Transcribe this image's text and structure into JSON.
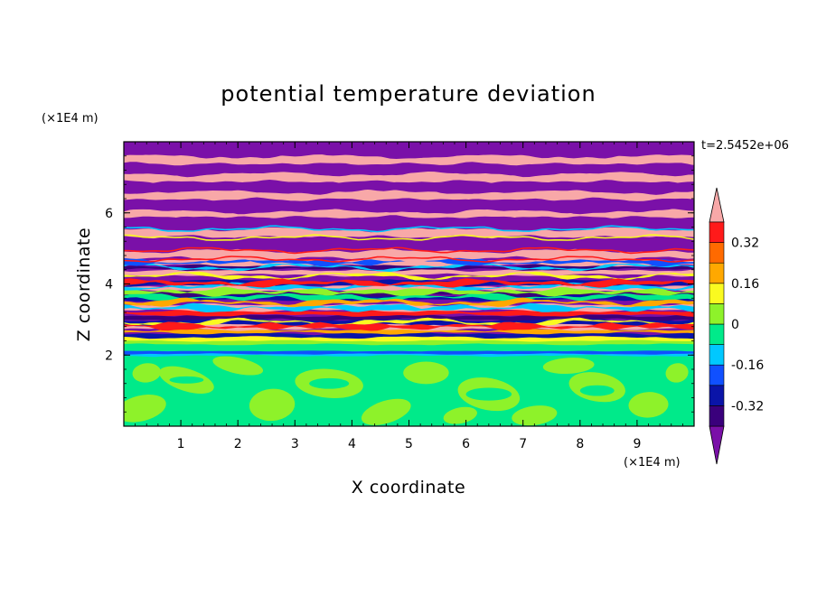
{
  "chart_data": {
    "type": "heatmap",
    "title": "potential temperature deviation",
    "xlabel": "X coordinate",
    "ylabel": "Z coordinate",
    "x_unit": "(×1E4 m)",
    "y_unit": "(×1E4 m)",
    "time_label": "t=2.5452e+06",
    "xlim": [
      0,
      10
    ],
    "ylim": [
      0,
      8
    ],
    "x_ticks": [
      "1",
      "2",
      "3",
      "4",
      "5",
      "6",
      "7",
      "8",
      "9"
    ],
    "y_ticks": [
      "2",
      "4",
      "6"
    ],
    "colorbar": {
      "levels": [
        -0.48,
        -0.4,
        -0.32,
        -0.24,
        -0.16,
        -0.08,
        0,
        0.08,
        0.16,
        0.24,
        0.32,
        0.4,
        0.48
      ],
      "labels": [
        "0.32",
        "0.16",
        "0",
        "-0.16",
        "-0.32"
      ],
      "label_values": [
        0.32,
        0.16,
        0,
        -0.16,
        -0.32
      ],
      "colors": [
        "#7a10a8",
        "#3a007c",
        "#0a14a8",
        "#1050ff",
        "#00c8ff",
        "#00ea8a",
        "#8ef22a",
        "#fafa20",
        "#ffa800",
        "#ff6a00",
        "#ff1a1a",
        "#f8a8a8"
      ],
      "extend": "both"
    },
    "field_summary": [
      {
        "z_range": [
          0,
          2.0
        ],
        "description": "mix of 0 to 0.08 (green / yellow-green)"
      },
      {
        "z_range": [
          2.0,
          2.4
        ],
        "description": "0 to -0.08 band with -0.16 layer near 2.1"
      },
      {
        "z_range": [
          2.4,
          4.5
        ],
        "description": "alternating bands from -0.48 to 0.48 with mixing"
      },
      {
        "z_range": [
          4.5,
          8.0
        ],
        "description": "alternating layers of >0.48 (pink) and <-0.48 (purple)"
      }
    ]
  }
}
